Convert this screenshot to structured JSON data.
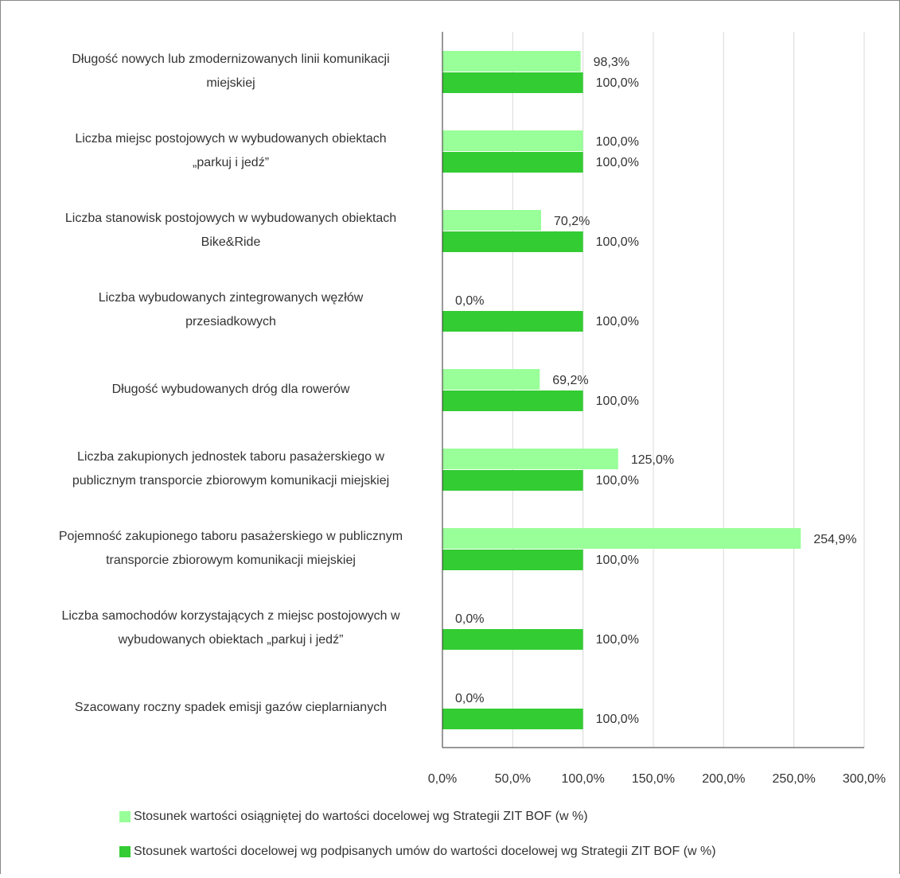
{
  "chart_data": {
    "type": "hbar",
    "categories": [
      [
        "Długość nowych lub zmodernizowanych linii komunikacji",
        "miejskiej"
      ],
      [
        "Liczba miejsc postojowych w wybudowanych obiektach",
        "„parkuj i jedź”"
      ],
      [
        "Liczba stanowisk postojowych w wybudowanych obiektach",
        "Bike&Ride"
      ],
      [
        "Liczba wybudowanych zintegrowanych węzłów",
        "przesiadkowych"
      ],
      [
        "Długość wybudowanych dróg dla rowerów"
      ],
      [
        "Liczba zakupionych jednostek taboru pasażerskiego w",
        "publicznym transporcie zbiorowym komunikacji miejskiej"
      ],
      [
        "Pojemność zakupionego taboru pasażerskiego w publicznym",
        "transporcie zbiorowym komunikacji miejskiej"
      ],
      [
        "Liczba samochodów korzystających z miejsc postojowych w",
        "wybudowanych obiektach „parkuj i jedź”"
      ],
      [
        "Szacowany roczny spadek emisji gazów cieplarnianych"
      ]
    ],
    "series": [
      {
        "name": "Stosunek wartości osiągniętej do wartości docelowej wg Strategii ZIT BOF (w %)",
        "color": "#99ff99",
        "values": [
          98.3,
          100.0,
          70.2,
          0.0,
          69.2,
          125.0,
          254.9,
          0.0,
          0.0
        ],
        "value_labels": [
          "98,3%",
          "100,0%",
          "70,2%",
          "0,0%",
          "69,2%",
          "125,0%",
          "254,9%",
          "0,0%",
          "0,0%"
        ]
      },
      {
        "name": "Stosunek wartości docelowej wg podpisanych umów do wartości docelowej wg Strategii ZIT BOF (w %)",
        "color": "#33cc33",
        "values": [
          100.0,
          100.0,
          100.0,
          100.0,
          100.0,
          100.0,
          100.0,
          100.0,
          100.0
        ],
        "value_labels": [
          "100,0%",
          "100,0%",
          "100,0%",
          "100,0%",
          "100,0%",
          "100,0%",
          "100,0%",
          "100,0%",
          "100,0%"
        ]
      }
    ],
    "xlim": [
      0,
      300
    ],
    "xticks": [
      {
        "value": 0,
        "label": "0,0%"
      },
      {
        "value": 50,
        "label": "50,0%"
      },
      {
        "value": 100,
        "label": "100,0%"
      },
      {
        "value": 150,
        "label": "150,0%"
      },
      {
        "value": 200,
        "label": "200,0%"
      },
      {
        "value": 250,
        "label": "250,0%"
      },
      {
        "value": 300,
        "label": "300,0%"
      }
    ],
    "grid": true
  }
}
